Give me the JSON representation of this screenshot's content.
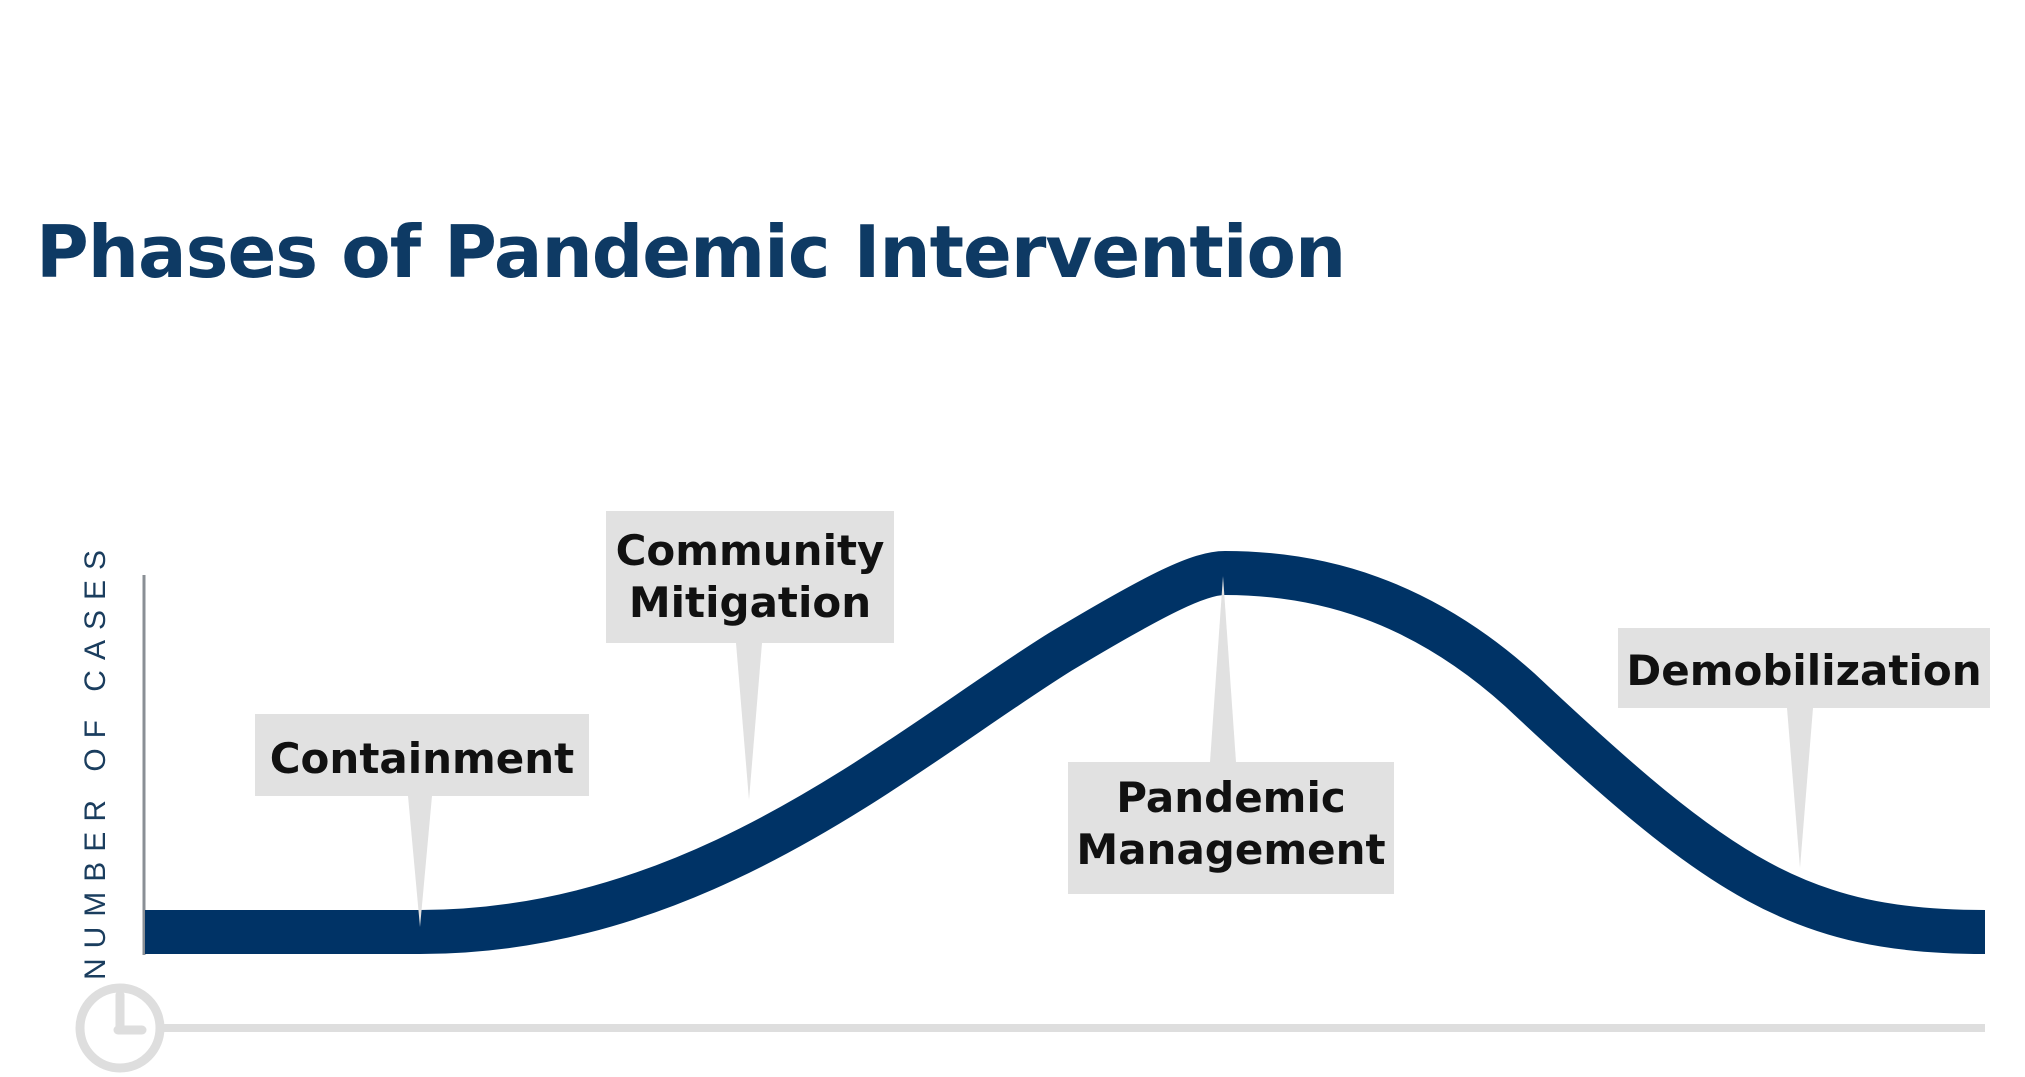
{
  "title": "Phases of Pandemic Intervention",
  "y_axis_label": "NUMBER OF CASES",
  "colors": {
    "title": "#0e3a64",
    "curve": "#003366",
    "callout_box": "#e1e1e1",
    "callout_text": "#111111",
    "axis": "#8a8f95",
    "timeline": "#dedede"
  },
  "icons": {
    "timeline_start": "clock-icon"
  },
  "phases": [
    {
      "lines": [
        "Containment"
      ]
    },
    {
      "lines": [
        "Community",
        "Mitigation"
      ]
    },
    {
      "lines": [
        "Pandemic",
        "Management"
      ]
    },
    {
      "lines": [
        "Demobilization"
      ]
    }
  ]
}
